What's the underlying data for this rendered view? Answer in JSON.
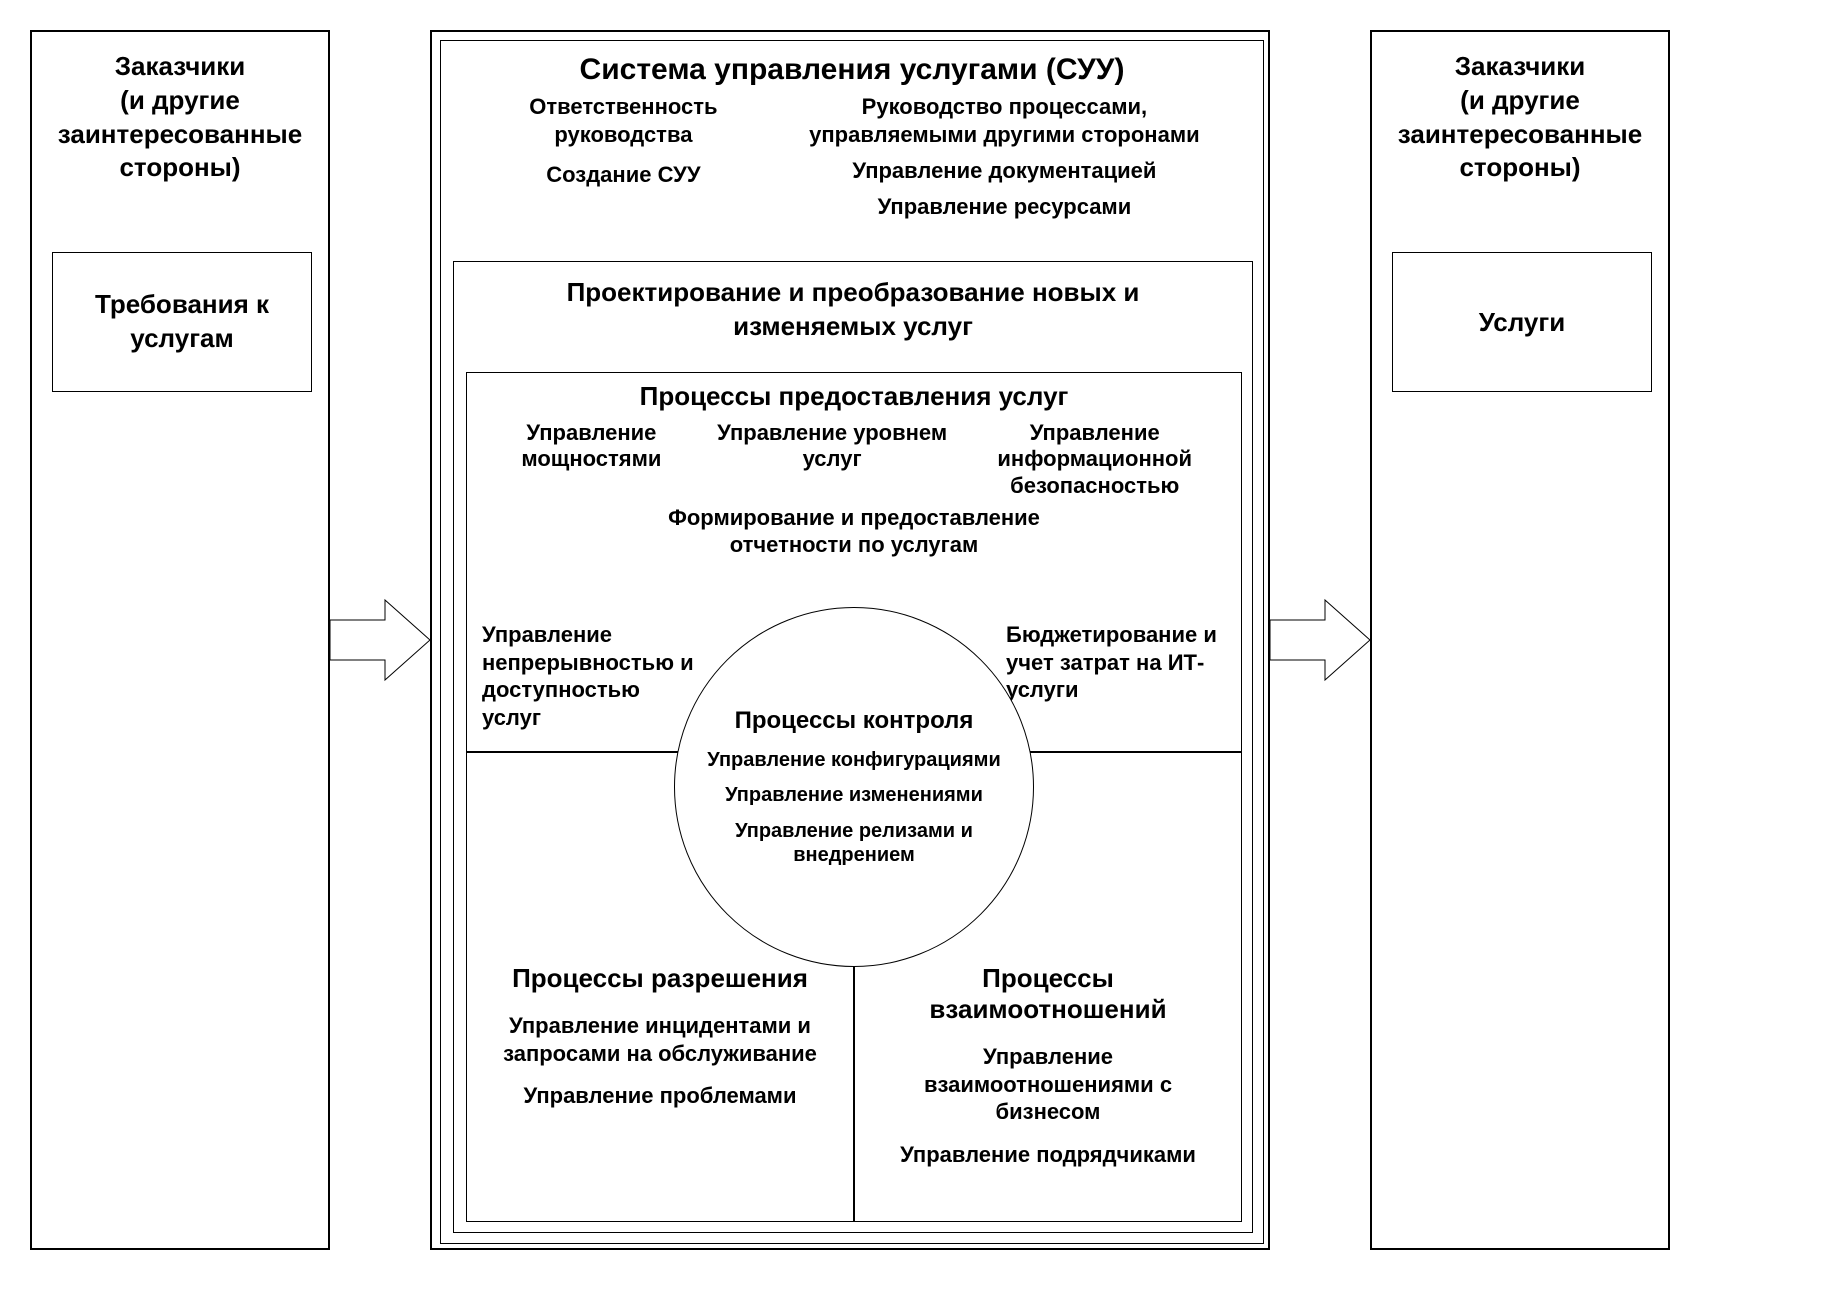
{
  "diagram": {
    "type": "flowchart",
    "background_color": "#ffffff",
    "border_color": "#000000",
    "text_color": "#000000",
    "font_family": "Arial",
    "left_panel": {
      "title": "Заказчики\n(и другие\nзаинтересованные\nстороны)",
      "sub_box": "Требования к\nуслугам",
      "title_fontsize": 26,
      "sub_fontsize": 26
    },
    "right_panel": {
      "title": "Заказчики\n(и другие\nзаинтересованные\nстороны)",
      "sub_box": "Услуги",
      "title_fontsize": 26,
      "sub_fontsize": 26
    },
    "center": {
      "main_title": "Система управления услугами (СУУ)",
      "main_title_fontsize": 30,
      "top_items": {
        "left_col": [
          "Ответственность руководства",
          "Создание СУУ"
        ],
        "right_col": [
          "Руководство процессами, управляемыми другими сторонами",
          "Управление документацией",
          "Управление ресурсами"
        ],
        "fontsize": 22
      },
      "design_box": {
        "title": "Проектирование и преобразование новых и изменяемых услуг",
        "fontsize": 26
      },
      "delivery_box": {
        "title": "Процессы предоставления услуг",
        "title_fontsize": 26,
        "items": {
          "top_left": "Управление мощностями",
          "top_center": "Управление уровнем услуг",
          "top_right": "Управление информационной безопасностью",
          "mid_center": "Формирование и предоставление отчетности по услугам",
          "bot_left": "Управление непрерывностью и доступностью услуг",
          "bot_right": "Бюджетирование и учет затрат на ИТ-услуги"
        },
        "item_fontsize": 22
      },
      "control_circle": {
        "title": "Процессы контроля",
        "title_fontsize": 24,
        "items": [
          "Управление конфигурациями",
          "Управление изменениями",
          "Управление релизами и внедрением"
        ],
        "item_fontsize": 20
      },
      "resolution_box": {
        "title": "Процессы разрешения",
        "title_fontsize": 26,
        "items": [
          "Управление инцидентами и запросами на обслуживание",
          "Управление проблемами"
        ],
        "item_fontsize": 22
      },
      "relationship_box": {
        "title": "Процессы взаимоотношений",
        "title_fontsize": 26,
        "items": [
          "Управление взаимоотношениями с бизнесом",
          "Управление подрядчиками"
        ],
        "item_fontsize": 22
      }
    }
  }
}
